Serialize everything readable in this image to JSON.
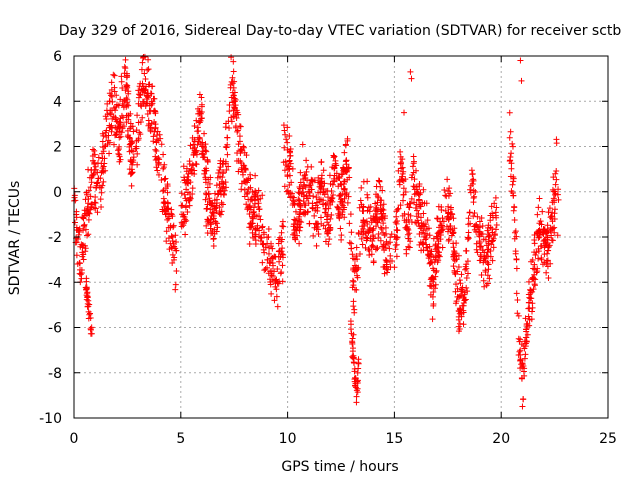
{
  "chart_data": {
    "type": "scatter",
    "title": "Day 329 of 2016, Sidereal Day-to-day VTEC variation (SDTVAR) for receiver sctb",
    "xlabel": "GPS time / hours",
    "ylabel": "SDTVAR / TECUs",
    "xlim": [
      0,
      25
    ],
    "ylim": [
      -10,
      6
    ],
    "xticks": [
      0,
      5,
      10,
      15,
      20,
      25
    ],
    "yticks": [
      -10,
      -8,
      -6,
      -4,
      -2,
      0,
      2,
      4,
      6
    ],
    "grid": true,
    "marker": "+",
    "color": "#ff0000",
    "series": [
      {
        "name": "SDTVAR",
        "segments": [
          {
            "x": [
              0.0,
              0.3,
              0.6,
              0.9,
              1.2,
              1.5,
              1.8,
              2.1,
              2.4,
              2.7,
              3.0,
              3.3,
              3.6,
              3.9,
              4.2,
              4.5,
              4.8
            ],
            "y": [
              -0.5,
              -3.0,
              -1.0,
              1.0,
              0.0,
              2.0,
              4.0,
              2.5,
              5.0,
              1.0,
              3.0,
              5.0,
              4.0,
              2.0,
              0.0,
              -1.5,
              -3.0
            ],
            "spread": 1.8
          },
          {
            "x": [
              0.55,
              0.65,
              0.75,
              0.85
            ],
            "y": [
              -4.0,
              -5.0,
              -5.7,
              -6.2
            ],
            "spread": 0.6
          },
          {
            "x": [
              5.0,
              5.3,
              5.6,
              5.9,
              6.2,
              6.5,
              6.8,
              7.1,
              7.4,
              7.7,
              8.0,
              8.3,
              8.6,
              8.9,
              9.2,
              9.5,
              9.8
            ],
            "y": [
              -1.0,
              0.0,
              1.5,
              3.5,
              0.0,
              -1.5,
              0.0,
              1.5,
              5.0,
              2.0,
              0.5,
              -1.0,
              -0.5,
              -2.0,
              -3.0,
              -4.0,
              -2.0
            ],
            "spread": 1.8
          },
          {
            "x": [
              9.8,
              10.1,
              10.4,
              10.7,
              11.0,
              11.3,
              11.6,
              11.9,
              12.2,
              12.5,
              12.8,
              13.1,
              13.4,
              13.7,
              14.0,
              14.3,
              14.6,
              14.9
            ],
            "y": [
              2.0,
              1.0,
              -2.0,
              0.5,
              0.0,
              -1.0,
              0.0,
              -1.5,
              1.0,
              -0.5,
              1.5,
              -5.0,
              -1.5,
              -1.0,
              -2.0,
              -0.5,
              -2.5,
              -2.0
            ],
            "spread": 1.8
          },
          {
            "x": [
              12.95,
              13.05,
              13.15,
              13.25,
              13.35
            ],
            "y": [
              -5.5,
              -7.0,
              -8.5,
              -9.0,
              -7.5
            ],
            "spread": 0.8
          },
          {
            "x": [
              15.0,
              15.3,
              15.6,
              15.9,
              16.2,
              16.5,
              16.8,
              17.1,
              17.4,
              17.7,
              18.0,
              18.3,
              18.6,
              18.9,
              19.2,
              19.5,
              19.8
            ],
            "y": [
              -3.0,
              1.0,
              -2.0,
              0.5,
              -1.0,
              -2.0,
              -4.0,
              -2.0,
              -1.0,
              -1.5,
              -4.5,
              -5.0,
              0.5,
              -2.0,
              -3.0,
              -2.0,
              -1.0
            ],
            "spread": 1.8
          },
          {
            "x": [
              20.4,
              20.6,
              20.8,
              21.0,
              21.2,
              21.4,
              21.6,
              21.8,
              22.0,
              22.2,
              22.4,
              22.6,
              22.7
            ],
            "y": [
              2.0,
              0.0,
              -6.0,
              -8.5,
              -6.0,
              -4.5,
              -3.0,
              -1.5,
              -2.0,
              -2.5,
              -1.0,
              1.0,
              -2.0
            ],
            "spread": 1.8
          }
        ],
        "extra_points": {
          "x": [
            15.75,
            15.8,
            15.45,
            20.9,
            20.95
          ],
          "y": [
            5.3,
            5.0,
            3.5,
            5.8,
            4.9
          ]
        }
      }
    ]
  }
}
